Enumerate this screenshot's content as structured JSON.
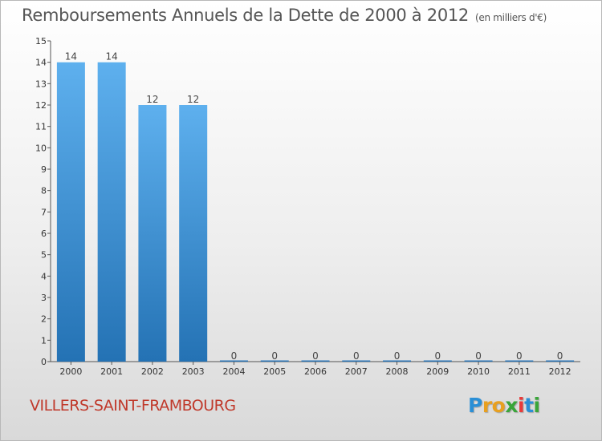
{
  "title": "Remboursements Annuels de la Dette de 2000 à 2012",
  "unit_note": "(en milliers d'€)",
  "commune": "VILLERS-SAINT-FRAMBOURG",
  "logo": {
    "letters": [
      "P",
      "r",
      "o",
      "x",
      "i",
      "t",
      "i"
    ],
    "colors": [
      "#2a8fd6",
      "#e8a020",
      "#e8a020",
      "#3aa53a",
      "#e83a3a",
      "#2a8fd6",
      "#3aa53a"
    ]
  },
  "chart_data": {
    "type": "bar",
    "title": "Remboursements Annuels de la Dette de 2000 à 2012",
    "categories": [
      "2000",
      "2001",
      "2002",
      "2003",
      "2004",
      "2005",
      "2006",
      "2007",
      "2008",
      "2009",
      "2010",
      "2011",
      "2012"
    ],
    "values": [
      14,
      14,
      12,
      12,
      0,
      0,
      0,
      0,
      0,
      0,
      0,
      0,
      0
    ],
    "data_labels": [
      "14",
      "14",
      "12",
      "12",
      "0",
      "0",
      "0",
      "0",
      "0",
      "0",
      "0",
      "0",
      "0"
    ],
    "ylim": [
      0,
      15
    ],
    "yticks": [
      0,
      1,
      2,
      3,
      4,
      5,
      6,
      7,
      8,
      9,
      10,
      11,
      12,
      13,
      14,
      15
    ],
    "ytick_labels": [
      "0",
      "1",
      "2",
      "3",
      "4",
      "5",
      "6",
      "7",
      "8",
      "9",
      "10",
      "11",
      "12",
      "13",
      "14",
      "15"
    ],
    "bar_color": "#4a9fe0",
    "bar_color_dark": "#2a76b8",
    "grid": false
  }
}
